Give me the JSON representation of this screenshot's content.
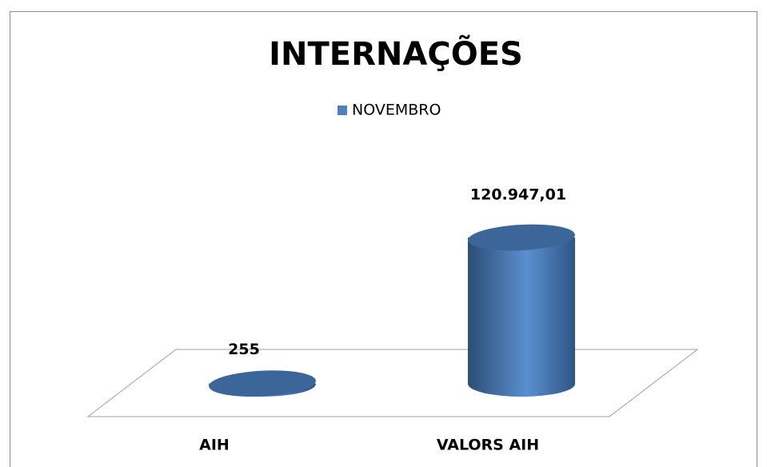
{
  "chart_data": {
    "type": "cylinder-bar",
    "title": "INTERNAÇÕES",
    "categories": [
      "AIH",
      "VALORS AIH"
    ],
    "series": [
      {
        "name": "NOVEMBRO",
        "color": "#4f81bd",
        "values": [
          255,
          120947.01
        ],
        "value_labels": [
          "255",
          "120.947,01"
        ]
      }
    ],
    "legend": "top"
  }
}
